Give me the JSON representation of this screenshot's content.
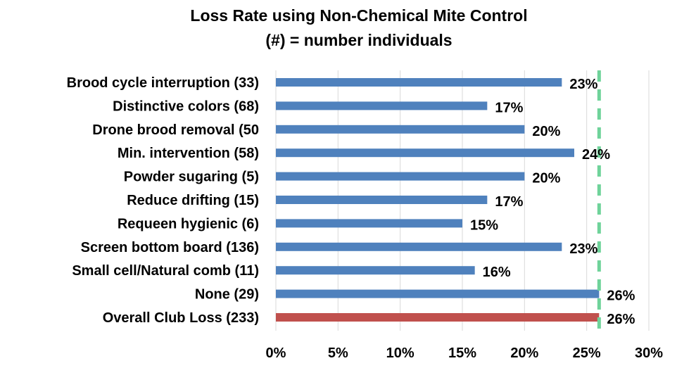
{
  "chart_data": {
    "type": "bar",
    "orientation": "horizontal",
    "title": "Loss Rate using Non-Chemical Mite Control",
    "subtitle": "(#) = number individuals",
    "categories": [
      "Brood cycle interruption (33)",
      "Distinctive colors (68)",
      "Drone brood removal (50",
      "Min. intervention (58)",
      "Powder sugaring (5)",
      "Reduce drifting (15)",
      "Requeen hygienic (6)",
      "Screen bottom board (136)",
      "Small cell/Natural comb (11)",
      "None (29)",
      "Overall Club Loss (233)"
    ],
    "values": [
      23,
      17,
      20,
      24,
      20,
      17,
      15,
      23,
      16,
      26,
      26
    ],
    "value_labels": [
      "23%",
      "17%",
      "20%",
      "24%",
      "20%",
      "17%",
      "15%",
      "23%",
      "16%",
      "26%",
      "26%"
    ],
    "bar_colors": [
      "#4f81bd",
      "#4f81bd",
      "#4f81bd",
      "#4f81bd",
      "#4f81bd",
      "#4f81bd",
      "#4f81bd",
      "#4f81bd",
      "#4f81bd",
      "#4f81bd",
      "#c0504d"
    ],
    "xlim": [
      0,
      30
    ],
    "xticks": [
      0,
      5,
      10,
      15,
      20,
      25,
      30
    ],
    "xtick_labels": [
      "0%",
      "5%",
      "10%",
      "15%",
      "20%",
      "25%",
      "30%"
    ],
    "reference_line": {
      "value": 26,
      "style": "dashed",
      "color": "#6fd39a"
    },
    "grid": "vertical",
    "grid_color": "#d9d9d9",
    "legend": "none"
  }
}
